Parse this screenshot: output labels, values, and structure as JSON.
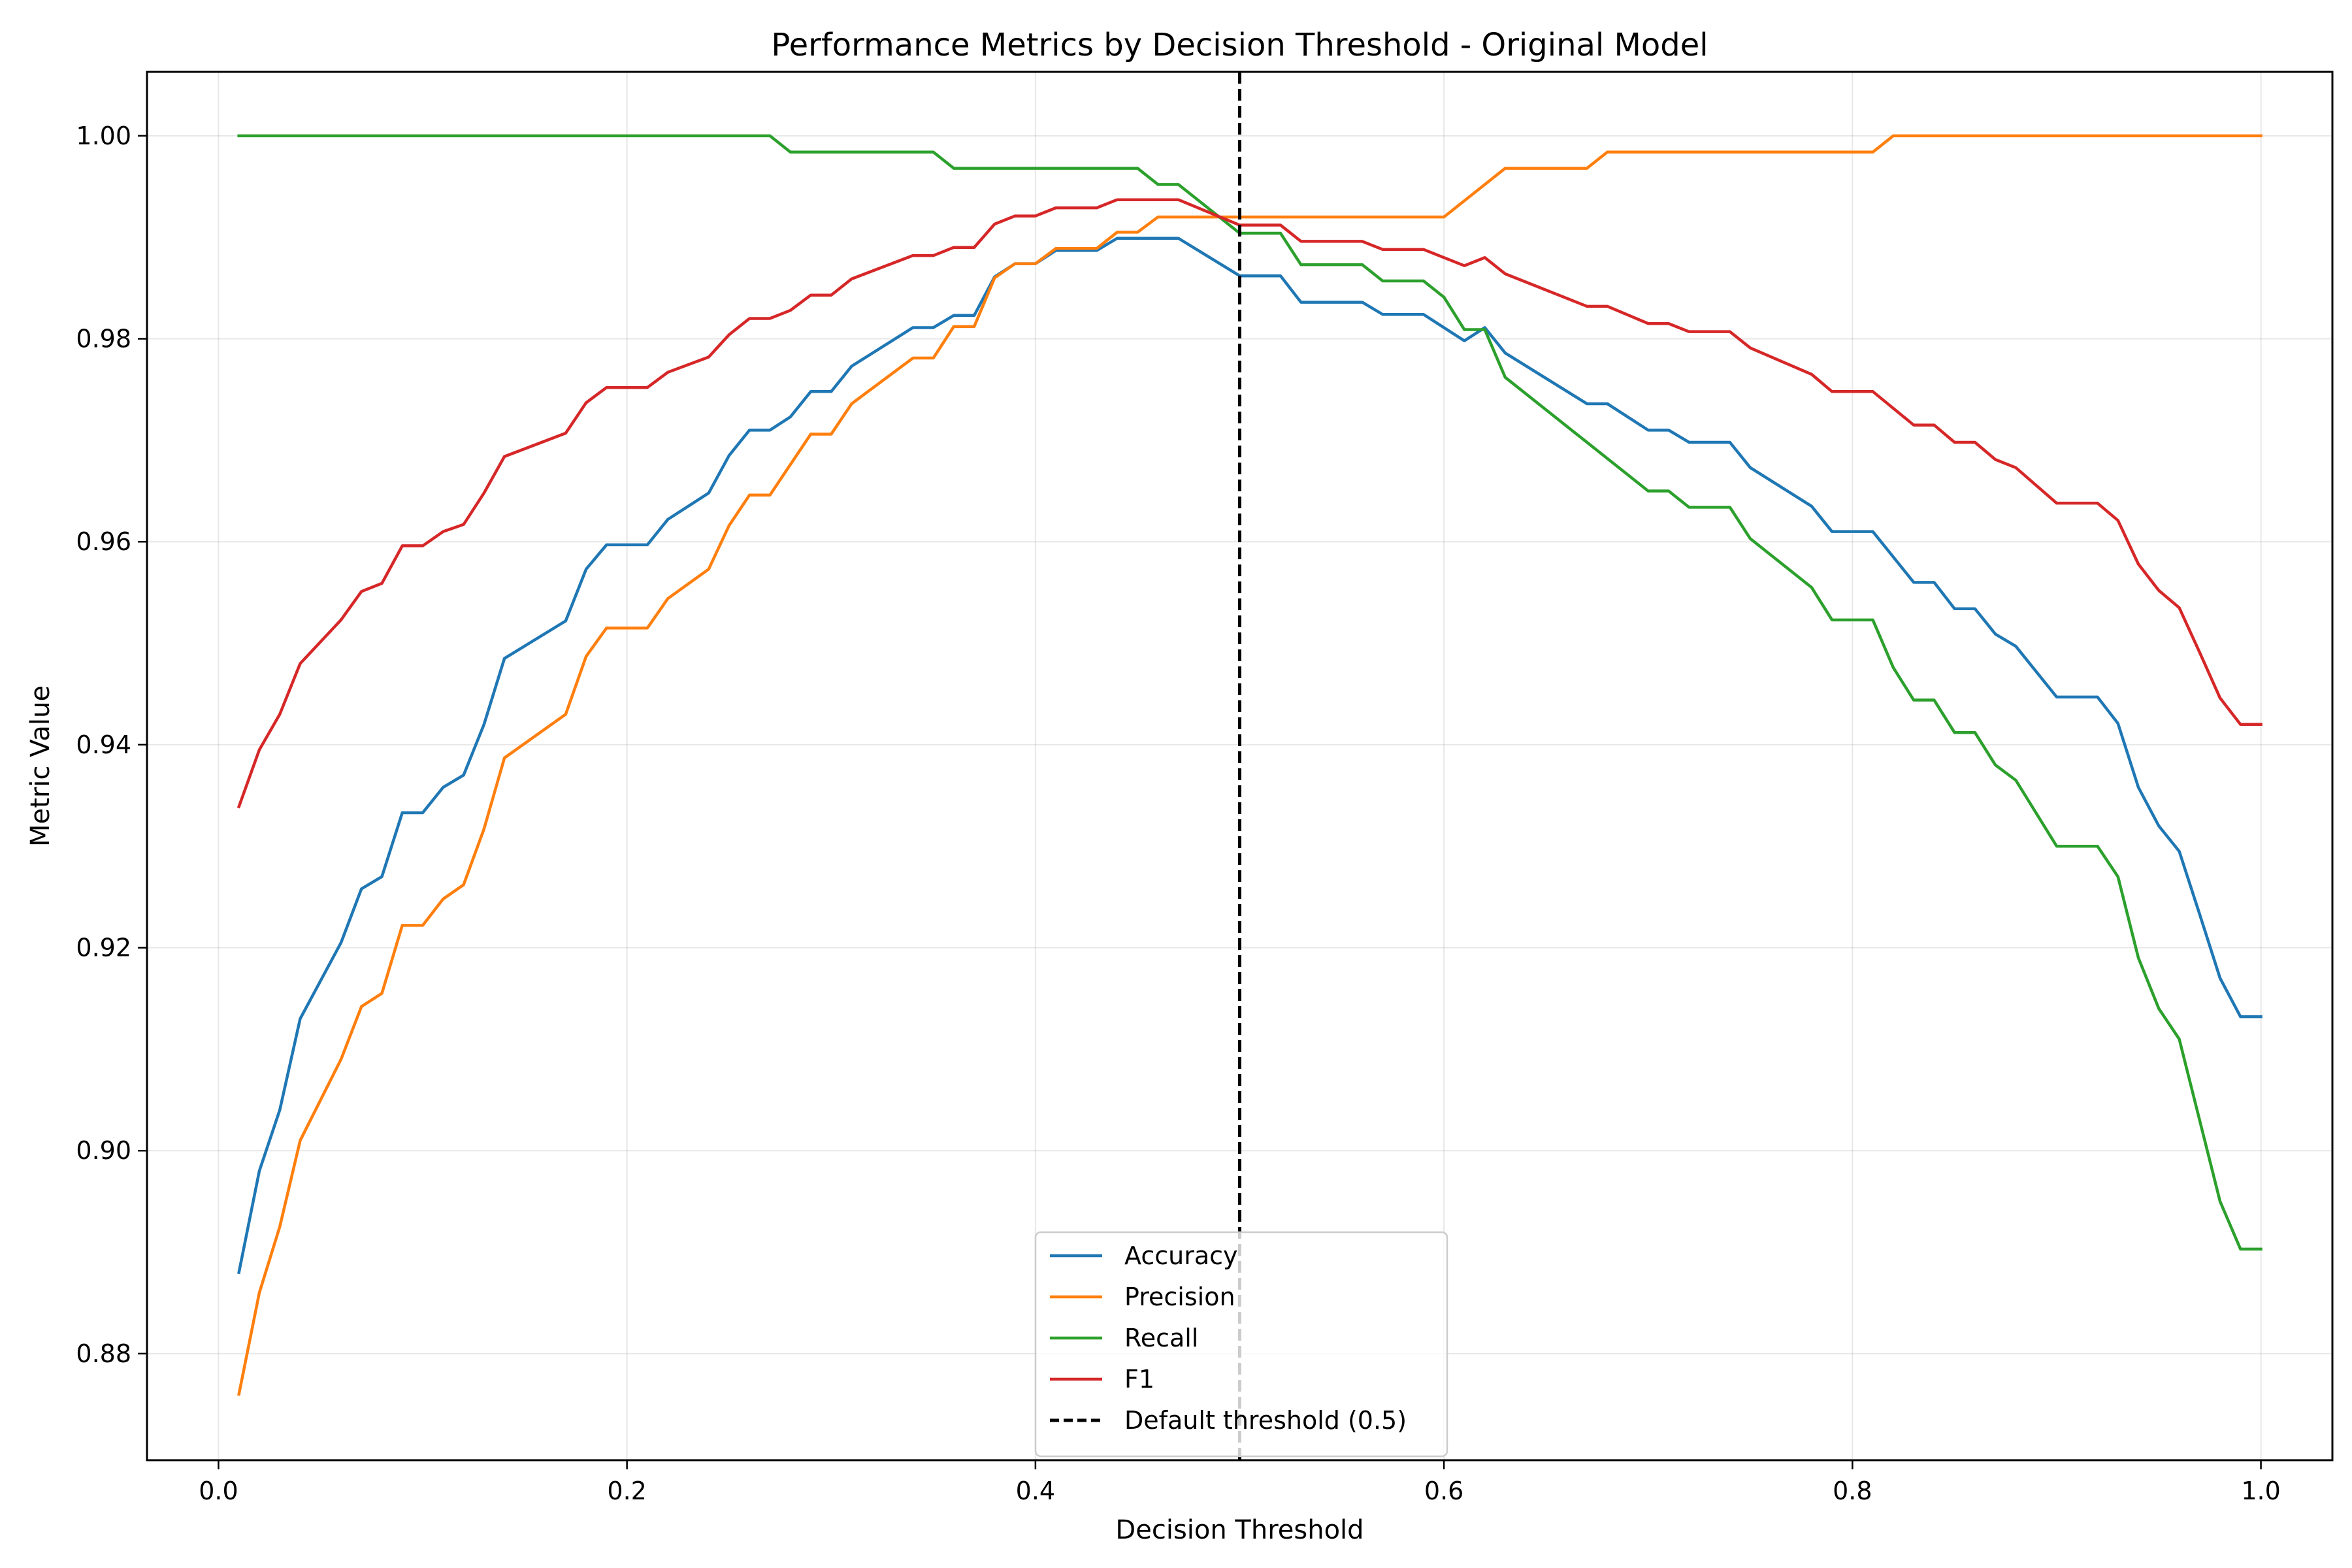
{
  "chart_data": {
    "type": "line",
    "title": "Performance Metrics by Decision Threshold - Original Model",
    "xlabel": "Decision Threshold",
    "ylabel": "Metric Value",
    "xlim": [
      -0.035,
      1.035
    ],
    "ylim": [
      0.8695,
      1.0063
    ],
    "grid": true,
    "legend_position": "bottom-center",
    "x_ticks": [
      {
        "value": 0.0,
        "label": "0.0"
      },
      {
        "value": 0.2,
        "label": "0.2"
      },
      {
        "value": 0.4,
        "label": "0.4"
      },
      {
        "value": 0.6,
        "label": "0.6"
      },
      {
        "value": 0.8,
        "label": "0.8"
      },
      {
        "value": 1.0,
        "label": "1.0"
      }
    ],
    "y_ticks": [
      {
        "value": 0.88,
        "label": "0.88"
      },
      {
        "value": 0.9,
        "label": "0.90"
      },
      {
        "value": 0.92,
        "label": "0.92"
      },
      {
        "value": 0.94,
        "label": "0.94"
      },
      {
        "value": 0.96,
        "label": "0.96"
      },
      {
        "value": 0.98,
        "label": "0.98"
      },
      {
        "value": 1.0,
        "label": "1.00"
      }
    ],
    "series": [
      {
        "name": "Accuracy",
        "color": "#1f77b4",
        "points": [
          [
            0.01,
            0.888
          ],
          [
            0.02,
            0.898
          ],
          [
            0.03,
            0.904
          ],
          [
            0.04,
            0.913
          ],
          [
            0.06,
            0.9205
          ],
          [
            0.07,
            0.9258
          ],
          [
            0.08,
            0.927
          ],
          [
            0.09,
            0.9333
          ],
          [
            0.1,
            0.9333
          ],
          [
            0.11,
            0.9358
          ],
          [
            0.12,
            0.937
          ],
          [
            0.13,
            0.942
          ],
          [
            0.14,
            0.9485
          ],
          [
            0.17,
            0.9522
          ],
          [
            0.18,
            0.9573
          ],
          [
            0.19,
            0.9597
          ],
          [
            0.21,
            0.9597
          ],
          [
            0.22,
            0.9622
          ],
          [
            0.24,
            0.9648
          ],
          [
            0.25,
            0.9685
          ],
          [
            0.26,
            0.971
          ],
          [
            0.27,
            0.971
          ],
          [
            0.28,
            0.9723
          ],
          [
            0.29,
            0.9748
          ],
          [
            0.3,
            0.9748
          ],
          [
            0.31,
            0.9773
          ],
          [
            0.34,
            0.9811
          ],
          [
            0.35,
            0.9811
          ],
          [
            0.36,
            0.9823
          ],
          [
            0.37,
            0.9823
          ],
          [
            0.38,
            0.9861
          ],
          [
            0.39,
            0.9874
          ],
          [
            0.4,
            0.9874
          ],
          [
            0.41,
            0.9887
          ],
          [
            0.42,
            0.9887
          ],
          [
            0.43,
            0.9887
          ],
          [
            0.44,
            0.9899
          ],
          [
            0.47,
            0.9899
          ],
          [
            0.5,
            0.9862
          ],
          [
            0.52,
            0.9862
          ],
          [
            0.53,
            0.9836
          ],
          [
            0.56,
            0.9836
          ],
          [
            0.57,
            0.9824
          ],
          [
            0.59,
            0.9824
          ],
          [
            0.61,
            0.9798
          ],
          [
            0.62,
            0.9811
          ],
          [
            0.63,
            0.9786
          ],
          [
            0.67,
            0.9736
          ],
          [
            0.68,
            0.9736
          ],
          [
            0.7,
            0.971
          ],
          [
            0.71,
            0.971
          ],
          [
            0.72,
            0.9698
          ],
          [
            0.74,
            0.9698
          ],
          [
            0.75,
            0.9673
          ],
          [
            0.78,
            0.9635
          ],
          [
            0.79,
            0.961
          ],
          [
            0.81,
            0.961
          ],
          [
            0.83,
            0.956
          ],
          [
            0.84,
            0.956
          ],
          [
            0.85,
            0.9534
          ],
          [
            0.86,
            0.9534
          ],
          [
            0.87,
            0.9509
          ],
          [
            0.88,
            0.9497
          ],
          [
            0.9,
            0.9447
          ],
          [
            0.92,
            0.9447
          ],
          [
            0.93,
            0.9421
          ],
          [
            0.94,
            0.9358
          ],
          [
            0.95,
            0.932
          ],
          [
            0.96,
            0.9295
          ],
          [
            0.97,
            0.9233
          ],
          [
            0.98,
            0.917
          ],
          [
            0.99,
            0.9132
          ],
          [
            1.0,
            0.9132
          ]
        ]
      },
      {
        "name": "Precision",
        "color": "#ff7f0e",
        "points": [
          [
            0.01,
            0.876
          ],
          [
            0.02,
            0.886
          ],
          [
            0.03,
            0.8925
          ],
          [
            0.04,
            0.901
          ],
          [
            0.06,
            0.909
          ],
          [
            0.07,
            0.9142
          ],
          [
            0.08,
            0.9155
          ],
          [
            0.09,
            0.9222
          ],
          [
            0.1,
            0.9222
          ],
          [
            0.11,
            0.9248
          ],
          [
            0.12,
            0.9262
          ],
          [
            0.13,
            0.9317
          ],
          [
            0.14,
            0.9387
          ],
          [
            0.17,
            0.943
          ],
          [
            0.18,
            0.9487
          ],
          [
            0.19,
            0.9515
          ],
          [
            0.21,
            0.9515
          ],
          [
            0.22,
            0.9544
          ],
          [
            0.24,
            0.9573
          ],
          [
            0.25,
            0.9616
          ],
          [
            0.26,
            0.9646
          ],
          [
            0.27,
            0.9646
          ],
          [
            0.28,
            0.9676
          ],
          [
            0.29,
            0.9706
          ],
          [
            0.3,
            0.9706
          ],
          [
            0.31,
            0.9736
          ],
          [
            0.34,
            0.9781
          ],
          [
            0.35,
            0.9781
          ],
          [
            0.36,
            0.9812
          ],
          [
            0.37,
            0.9812
          ],
          [
            0.38,
            0.986
          ],
          [
            0.39,
            0.9874
          ],
          [
            0.4,
            0.9874
          ],
          [
            0.41,
            0.9889
          ],
          [
            0.43,
            0.9889
          ],
          [
            0.44,
            0.9905
          ],
          [
            0.45,
            0.9905
          ],
          [
            0.46,
            0.992
          ],
          [
            0.6,
            0.992
          ],
          [
            0.63,
            0.9968
          ],
          [
            0.67,
            0.9968
          ],
          [
            0.68,
            0.9984
          ],
          [
            0.81,
            0.9984
          ],
          [
            0.82,
            1.0
          ],
          [
            1.0,
            1.0
          ]
        ]
      },
      {
        "name": "Recall",
        "color": "#2ca02c",
        "points": [
          [
            0.01,
            1.0
          ],
          [
            0.27,
            1.0
          ],
          [
            0.28,
            0.9984
          ],
          [
            0.35,
            0.9984
          ],
          [
            0.36,
            0.9968
          ],
          [
            0.45,
            0.9968
          ],
          [
            0.46,
            0.9952
          ],
          [
            0.47,
            0.9952
          ],
          [
            0.5,
            0.9904
          ],
          [
            0.52,
            0.9904
          ],
          [
            0.53,
            0.9873
          ],
          [
            0.56,
            0.9873
          ],
          [
            0.57,
            0.9857
          ],
          [
            0.59,
            0.9857
          ],
          [
            0.6,
            0.9841
          ],
          [
            0.61,
            0.9809
          ],
          [
            0.62,
            0.9809
          ],
          [
            0.63,
            0.9762
          ],
          [
            0.7,
            0.965
          ],
          [
            0.71,
            0.965
          ],
          [
            0.72,
            0.9634
          ],
          [
            0.74,
            0.9634
          ],
          [
            0.75,
            0.9603
          ],
          [
            0.78,
            0.9555
          ],
          [
            0.79,
            0.9523
          ],
          [
            0.81,
            0.9523
          ],
          [
            0.82,
            0.9476
          ],
          [
            0.83,
            0.9444
          ],
          [
            0.84,
            0.9444
          ],
          [
            0.85,
            0.9412
          ],
          [
            0.86,
            0.9412
          ],
          [
            0.87,
            0.938
          ],
          [
            0.88,
            0.9365
          ],
          [
            0.9,
            0.93
          ],
          [
            0.92,
            0.93
          ],
          [
            0.93,
            0.927
          ],
          [
            0.94,
            0.919
          ],
          [
            0.95,
            0.914
          ],
          [
            0.96,
            0.911
          ],
          [
            0.97,
            0.903
          ],
          [
            0.98,
            0.895
          ],
          [
            0.99,
            0.8903
          ],
          [
            1.0,
            0.8903
          ]
        ]
      },
      {
        "name": "F1",
        "color": "#d62728",
        "points": [
          [
            0.01,
            0.9339
          ],
          [
            0.02,
            0.9395
          ],
          [
            0.03,
            0.943
          ],
          [
            0.04,
            0.948
          ],
          [
            0.06,
            0.9523
          ],
          [
            0.07,
            0.9551
          ],
          [
            0.08,
            0.9559
          ],
          [
            0.09,
            0.9596
          ],
          [
            0.1,
            0.9596
          ],
          [
            0.11,
            0.961
          ],
          [
            0.12,
            0.9617
          ],
          [
            0.13,
            0.9648
          ],
          [
            0.14,
            0.9684
          ],
          [
            0.17,
            0.9707
          ],
          [
            0.18,
            0.9737
          ],
          [
            0.19,
            0.9752
          ],
          [
            0.21,
            0.9752
          ],
          [
            0.22,
            0.9767
          ],
          [
            0.24,
            0.9782
          ],
          [
            0.25,
            0.9804
          ],
          [
            0.26,
            0.982
          ],
          [
            0.27,
            0.982
          ],
          [
            0.28,
            0.9828
          ],
          [
            0.29,
            0.9843
          ],
          [
            0.3,
            0.9843
          ],
          [
            0.31,
            0.9859
          ],
          [
            0.34,
            0.9882
          ],
          [
            0.35,
            0.9882
          ],
          [
            0.36,
            0.989
          ],
          [
            0.37,
            0.989
          ],
          [
            0.38,
            0.9913
          ],
          [
            0.39,
            0.9921
          ],
          [
            0.4,
            0.9921
          ],
          [
            0.41,
            0.9929
          ],
          [
            0.43,
            0.9929
          ],
          [
            0.44,
            0.9937
          ],
          [
            0.47,
            0.9937
          ],
          [
            0.5,
            0.9912
          ],
          [
            0.52,
            0.9912
          ],
          [
            0.53,
            0.9896
          ],
          [
            0.56,
            0.9896
          ],
          [
            0.57,
            0.9888
          ],
          [
            0.59,
            0.9888
          ],
          [
            0.61,
            0.9872
          ],
          [
            0.62,
            0.988
          ],
          [
            0.63,
            0.9864
          ],
          [
            0.67,
            0.9832
          ],
          [
            0.68,
            0.9832
          ],
          [
            0.7,
            0.9815
          ],
          [
            0.71,
            0.9815
          ],
          [
            0.72,
            0.9807
          ],
          [
            0.74,
            0.9807
          ],
          [
            0.75,
            0.9791
          ],
          [
            0.78,
            0.9765
          ],
          [
            0.79,
            0.9748
          ],
          [
            0.81,
            0.9748
          ],
          [
            0.83,
            0.9715
          ],
          [
            0.84,
            0.9715
          ],
          [
            0.85,
            0.9698
          ],
          [
            0.86,
            0.9698
          ],
          [
            0.87,
            0.9681
          ],
          [
            0.88,
            0.9673
          ],
          [
            0.9,
            0.9638
          ],
          [
            0.92,
            0.9638
          ],
          [
            0.93,
            0.9621
          ],
          [
            0.94,
            0.9578
          ],
          [
            0.95,
            0.9552
          ],
          [
            0.96,
            0.9535
          ],
          [
            0.97,
            0.9491
          ],
          [
            0.98,
            0.9446
          ],
          [
            0.99,
            0.942
          ],
          [
            1.0,
            0.942
          ]
        ]
      },
      {
        "name": "Default threshold (0.5)",
        "color": "#000000",
        "style": "dashed",
        "x": 0.5
      }
    ]
  }
}
